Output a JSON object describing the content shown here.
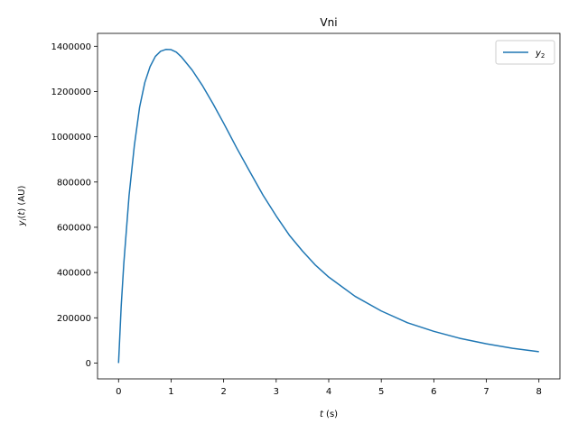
{
  "chart_data": {
    "type": "line",
    "title": "Vni",
    "xlabel": "t (s)",
    "ylabel": "y(t) (AU)",
    "xlim": [
      -0.4,
      8.4
    ],
    "ylim": [
      -70000,
      1457000
    ],
    "xticks": [
      0,
      1,
      2,
      3,
      4,
      5,
      6,
      7,
      8
    ],
    "yticks": [
      0,
      200000,
      400000,
      600000,
      800000,
      1000000,
      1200000,
      1400000
    ],
    "grid": false,
    "legend_position": "top-right",
    "series": [
      {
        "name": "y2",
        "color": "#1f77b4",
        "x": [
          0,
          0.05,
          0.1,
          0.2,
          0.3,
          0.4,
          0.5,
          0.6,
          0.7,
          0.8,
          0.9,
          1.0,
          1.1,
          1.2,
          1.4,
          1.6,
          1.8,
          2.0,
          2.25,
          2.5,
          2.75,
          3.0,
          3.25,
          3.5,
          3.75,
          4.0,
          4.5,
          5.0,
          5.5,
          6.0,
          6.5,
          7.0,
          7.5,
          8.0
        ],
        "values": [
          0,
          250000,
          440000,
          740000,
          960000,
          1130000,
          1240000,
          1310000,
          1355000,
          1378000,
          1386000,
          1385000,
          1374000,
          1352000,
          1295000,
          1225000,
          1145000,
          1060000,
          950000,
          845000,
          742000,
          650000,
          565000,
          495000,
          432000,
          380000,
          295000,
          230000,
          178000,
          140000,
          109000,
          85000,
          65000,
          50000
        ]
      }
    ]
  }
}
